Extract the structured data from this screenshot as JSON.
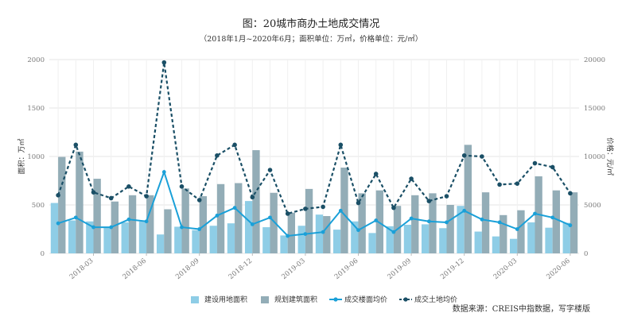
{
  "chart_data": {
    "type": "bar+line",
    "title": "图：20城市商办土地成交情况",
    "subtitle": "（2018年1月~2020年6月；面积单位：万㎡，价格单位：元/㎡）",
    "ylabel_left": "面积：万㎡",
    "ylabel_right": "价格：元/㎡",
    "ylim_left": [
      0,
      2000
    ],
    "ylim_right": [
      0,
      20000
    ],
    "yticks_left": [
      "0",
      "500",
      "1000",
      "1500",
      "2000"
    ],
    "yticks_right": [
      "0",
      "5000",
      "10000",
      "15000",
      "20000"
    ],
    "x_tick_labels": [
      {
        "index": 2,
        "label": "2018-03"
      },
      {
        "index": 5,
        "label": "2018-06"
      },
      {
        "index": 8,
        "label": "2018-09"
      },
      {
        "index": 11,
        "label": "2018-12"
      },
      {
        "index": 14,
        "label": "2019-03"
      },
      {
        "index": 17,
        "label": "2019-06"
      },
      {
        "index": 20,
        "label": "2019-09"
      },
      {
        "index": 23,
        "label": "2019-12"
      },
      {
        "index": 26,
        "label": "2020-03"
      },
      {
        "index": 29,
        "label": "2020-06"
      }
    ],
    "categories": [
      "2018-01",
      "2018-02",
      "2018-03",
      "2018-04",
      "2018-05",
      "2018-06",
      "2018-07",
      "2018-08",
      "2018-09",
      "2018-10",
      "2018-11",
      "2018-12",
      "2019-01",
      "2019-02",
      "2019-03",
      "2019-04",
      "2019-05",
      "2019-06",
      "2019-07",
      "2019-08",
      "2019-09",
      "2019-10",
      "2019-11",
      "2019-12",
      "2020-01",
      "2020-02",
      "2020-03",
      "2020-04",
      "2020-05",
      "2020-06"
    ],
    "series": [
      {
        "name": "建设用地面积",
        "type": "bar",
        "axis": "left",
        "color": "#8ecde6",
        "values": [
          520,
          340,
          330,
          270,
          320,
          330,
          195,
          275,
          240,
          285,
          310,
          540,
          270,
          185,
          285,
          400,
          245,
          330,
          210,
          280,
          295,
          300,
          260,
          490,
          225,
          175,
          150,
          320,
          265,
          315
        ]
      },
      {
        "name": "规划建筑面积",
        "type": "bar",
        "axis": "left",
        "color": "#93adb7",
        "values": [
          995,
          1050,
          770,
          535,
          600,
          600,
          455,
          670,
          590,
          715,
          725,
          1065,
          625,
          420,
          665,
          385,
          885,
          620,
          650,
          490,
          600,
          620,
          500,
          1120,
          630,
          395,
          445,
          795,
          650,
          630
        ]
      },
      {
        "name": "成交楼面均价",
        "type": "line",
        "axis": "right",
        "color": "#1aa0d8",
        "values": [
          3100,
          3700,
          2700,
          2700,
          3500,
          3300,
          8400,
          2700,
          2500,
          3900,
          4700,
          3000,
          3700,
          1800,
          2000,
          2200,
          4400,
          2400,
          3400,
          2200,
          3600,
          3300,
          3200,
          4400,
          3500,
          3200,
          2500,
          4100,
          3700,
          2900
        ]
      },
      {
        "name": "成交土地均价",
        "type": "line",
        "axis": "right",
        "color": "#1a4f66",
        "dashed": true,
        "values": [
          6000,
          11200,
          6300,
          5700,
          6900,
          5900,
          19700,
          6900,
          5500,
          10100,
          11200,
          5800,
          8600,
          4100,
          4600,
          4800,
          11200,
          5200,
          8200,
          4700,
          7700,
          5400,
          5900,
          10100,
          10000,
          7100,
          7200,
          9300,
          8900,
          6200
        ]
      }
    ],
    "legend_position": "bottom",
    "grid": true
  },
  "source_note": "数据来源：CREIS中指数据，写字楼版"
}
